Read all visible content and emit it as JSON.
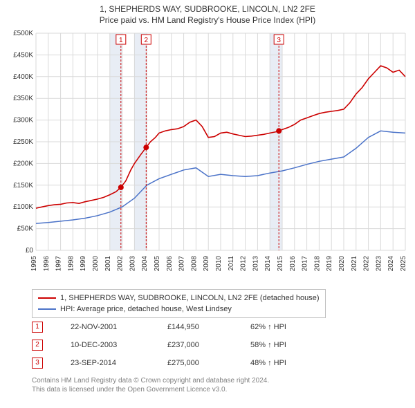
{
  "titles": {
    "main": "1, SHEPHERDS WAY, SUDBROOKE, LINCOLN, LN2 2FE",
    "sub": "Price paid vs. HM Land Registry's House Price Index (HPI)"
  },
  "chart": {
    "type": "line",
    "background_color": "#ffffff",
    "grid_color": "#d9d9d9",
    "zebra_color": "#e8edf5",
    "x": {
      "start_year": 1995,
      "end_year": 2025,
      "tick_years": [
        1995,
        1996,
        1997,
        1998,
        1999,
        2000,
        2001,
        2002,
        2003,
        2004,
        2005,
        2006,
        2007,
        2008,
        2009,
        2010,
        2011,
        2012,
        2013,
        2014,
        2015,
        2016,
        2017,
        2018,
        2019,
        2020,
        2021,
        2022,
        2023,
        2024,
        2025
      ]
    },
    "y": {
      "min": 0,
      "max": 500000,
      "tick_step": 50000,
      "tick_labels": [
        "£0",
        "£50K",
        "£100K",
        "£150K",
        "£200K",
        "£250K",
        "£300K",
        "£350K",
        "£400K",
        "£450K",
        "£500K"
      ]
    },
    "zebra_bands": [
      {
        "from": 2001,
        "to": 2002
      },
      {
        "from": 2003,
        "to": 2004
      },
      {
        "from": 2014,
        "to": 2015
      }
    ],
    "series": [
      {
        "name": "property",
        "label": "1, SHEPHERDS WAY, SUDBROOKE, LINCOLN, LN2 2FE (detached house)",
        "color": "#cc0000",
        "points": [
          [
            1995.0,
            97000
          ],
          [
            1995.5,
            100000
          ],
          [
            1996.0,
            103000
          ],
          [
            1996.5,
            105000
          ],
          [
            1997.0,
            106000
          ],
          [
            1997.5,
            109000
          ],
          [
            1998.0,
            110000
          ],
          [
            1998.5,
            108000
          ],
          [
            1999.0,
            112000
          ],
          [
            1999.5,
            115000
          ],
          [
            2000.0,
            118000
          ],
          [
            2000.5,
            122000
          ],
          [
            2001.0,
            128000
          ],
          [
            2001.5,
            135000
          ],
          [
            2001.9,
            144950
          ],
          [
            2002.3,
            160000
          ],
          [
            2002.7,
            185000
          ],
          [
            2003.0,
            200000
          ],
          [
            2003.5,
            220000
          ],
          [
            2003.95,
            237000
          ],
          [
            2004.3,
            250000
          ],
          [
            2004.7,
            260000
          ],
          [
            2005.0,
            270000
          ],
          [
            2005.5,
            275000
          ],
          [
            2006.0,
            278000
          ],
          [
            2006.5,
            280000
          ],
          [
            2007.0,
            285000
          ],
          [
            2007.5,
            295000
          ],
          [
            2008.0,
            300000
          ],
          [
            2008.5,
            285000
          ],
          [
            2009.0,
            260000
          ],
          [
            2009.5,
            262000
          ],
          [
            2010.0,
            270000
          ],
          [
            2010.5,
            272000
          ],
          [
            2011.0,
            268000
          ],
          [
            2011.5,
            265000
          ],
          [
            2012.0,
            262000
          ],
          [
            2012.5,
            263000
          ],
          [
            2013.0,
            265000
          ],
          [
            2013.5,
            267000
          ],
          [
            2014.0,
            270000
          ],
          [
            2014.5,
            273000
          ],
          [
            2014.73,
            275000
          ],
          [
            2015.0,
            278000
          ],
          [
            2015.5,
            283000
          ],
          [
            2016.0,
            290000
          ],
          [
            2016.5,
            300000
          ],
          [
            2017.0,
            305000
          ],
          [
            2017.5,
            310000
          ],
          [
            2018.0,
            315000
          ],
          [
            2018.5,
            318000
          ],
          [
            2019.0,
            320000
          ],
          [
            2019.5,
            322000
          ],
          [
            2020.0,
            325000
          ],
          [
            2020.5,
            340000
          ],
          [
            2021.0,
            360000
          ],
          [
            2021.5,
            375000
          ],
          [
            2022.0,
            395000
          ],
          [
            2022.5,
            410000
          ],
          [
            2023.0,
            425000
          ],
          [
            2023.5,
            420000
          ],
          [
            2024.0,
            410000
          ],
          [
            2024.5,
            415000
          ],
          [
            2025.0,
            400000
          ]
        ]
      },
      {
        "name": "hpi",
        "label": "HPI: Average price, detached house, West Lindsey",
        "color": "#4a72c8",
        "points": [
          [
            1995.0,
            62000
          ],
          [
            1996.0,
            64000
          ],
          [
            1997.0,
            67000
          ],
          [
            1998.0,
            70000
          ],
          [
            1999.0,
            74000
          ],
          [
            2000.0,
            80000
          ],
          [
            2001.0,
            88000
          ],
          [
            2002.0,
            100000
          ],
          [
            2003.0,
            120000
          ],
          [
            2004.0,
            150000
          ],
          [
            2005.0,
            165000
          ],
          [
            2006.0,
            175000
          ],
          [
            2007.0,
            185000
          ],
          [
            2008.0,
            190000
          ],
          [
            2009.0,
            170000
          ],
          [
            2010.0,
            175000
          ],
          [
            2011.0,
            172000
          ],
          [
            2012.0,
            170000
          ],
          [
            2013.0,
            172000
          ],
          [
            2014.0,
            178000
          ],
          [
            2015.0,
            183000
          ],
          [
            2016.0,
            190000
          ],
          [
            2017.0,
            198000
          ],
          [
            2018.0,
            205000
          ],
          [
            2019.0,
            210000
          ],
          [
            2020.0,
            215000
          ],
          [
            2021.0,
            235000
          ],
          [
            2022.0,
            260000
          ],
          [
            2023.0,
            275000
          ],
          [
            2024.0,
            272000
          ],
          [
            2025.0,
            270000
          ]
        ]
      }
    ],
    "markers": [
      {
        "num": "1",
        "year": 2001.9,
        "value": 144950
      },
      {
        "num": "2",
        "year": 2003.95,
        "value": 237000
      },
      {
        "num": "3",
        "year": 2014.73,
        "value": 275000
      }
    ]
  },
  "legend": {
    "rows": [
      {
        "color": "#cc0000",
        "label": "1, SHEPHERDS WAY, SUDBROOKE, LINCOLN, LN2 2FE (detached house)"
      },
      {
        "color": "#4a72c8",
        "label": "HPI: Average price, detached house, West Lindsey"
      }
    ]
  },
  "marker_table": {
    "rows": [
      {
        "num": "1",
        "date": "22-NOV-2001",
        "price": "£144,950",
        "pct": "62% ↑ HPI"
      },
      {
        "num": "2",
        "date": "10-DEC-2003",
        "price": "£237,000",
        "pct": "58% ↑ HPI"
      },
      {
        "num": "3",
        "date": "23-SEP-2014",
        "price": "£275,000",
        "pct": "48% ↑ HPI"
      }
    ]
  },
  "footer": {
    "line1": "Contains HM Land Registry data © Crown copyright and database right 2024.",
    "line2": "This data is licensed under the Open Government Licence v3.0."
  }
}
